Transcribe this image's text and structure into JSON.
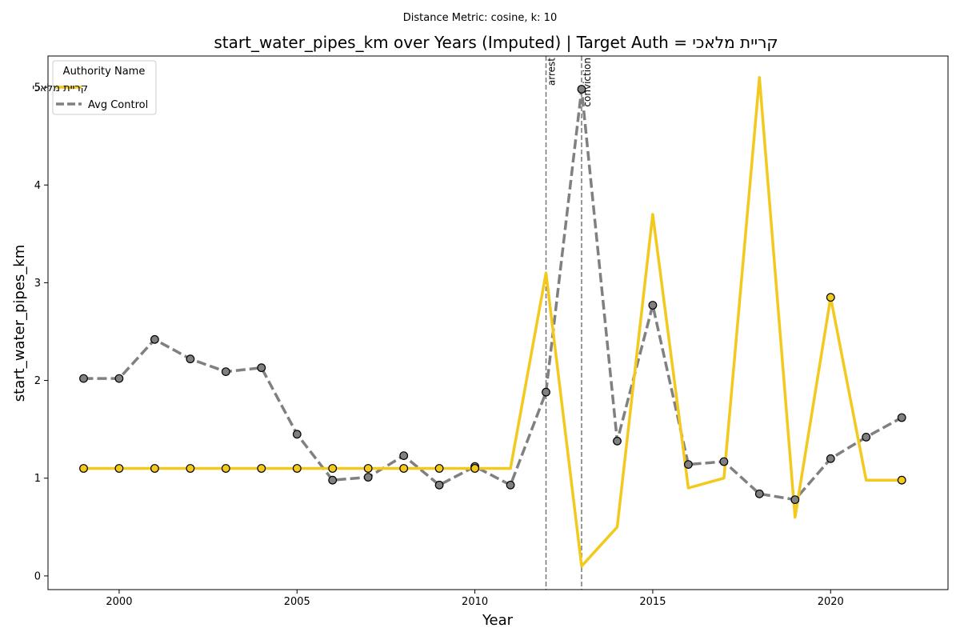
{
  "chart_data": {
    "type": "line",
    "suptitle": "Distance Metric: cosine, k: 10",
    "title": "start_water_pipes_km over Years (Imputed) | Target Auth = קריית מלאכי",
    "xlabel": "Year",
    "ylabel": "start_water_pipes_km",
    "xlim": [
      1998,
      2023.3
    ],
    "ylim": [
      -0.14,
      5.32
    ],
    "xticks": [
      2000,
      2005,
      2010,
      2015,
      2020
    ],
    "yticks": [
      0,
      1,
      2,
      3,
      4,
      5
    ],
    "grid": false,
    "legend": {
      "title": "Authority Name",
      "placement": "upper-left"
    },
    "x": [
      1999,
      2000,
      2001,
      2002,
      2003,
      2004,
      2005,
      2006,
      2007,
      2008,
      2009,
      2010,
      2011,
      2012,
      2013,
      2014,
      2015,
      2016,
      2017,
      2018,
      2019,
      2020,
      2021,
      2022
    ],
    "series": [
      {
        "name": "קריית מלאכי",
        "color": "#f2c91c",
        "style": "solid",
        "values": [
          1.1,
          1.1,
          1.1,
          1.1,
          1.1,
          1.1,
          1.1,
          1.1,
          1.1,
          1.1,
          1.1,
          1.1,
          1.1,
          3.1,
          0.1,
          0.5,
          3.7,
          0.9,
          1.0,
          5.1,
          0.6,
          2.85,
          0.98,
          0.98
        ],
        "markers": [
          true,
          true,
          true,
          true,
          true,
          true,
          true,
          true,
          true,
          true,
          true,
          true,
          false,
          false,
          false,
          false,
          false,
          false,
          false,
          false,
          false,
          true,
          false,
          true
        ]
      },
      {
        "name": "Avg Control",
        "color": "#808080",
        "style": "dashed",
        "values": [
          2.02,
          2.02,
          2.42,
          2.22,
          2.09,
          2.13,
          1.45,
          0.98,
          1.01,
          1.23,
          0.93,
          1.12,
          0.93,
          1.88,
          4.98,
          1.38,
          2.77,
          1.14,
          1.17,
          0.84,
          0.78,
          1.2,
          1.42,
          1.62
        ],
        "markers": [
          true,
          true,
          true,
          true,
          true,
          true,
          true,
          true,
          true,
          true,
          true,
          true,
          true,
          true,
          true,
          true,
          true,
          true,
          true,
          true,
          true,
          true,
          true,
          true
        ]
      }
    ],
    "vlines": [
      {
        "x": 2012,
        "label": "arrest"
      },
      {
        "x": 2013,
        "label": "conviction"
      }
    ]
  }
}
